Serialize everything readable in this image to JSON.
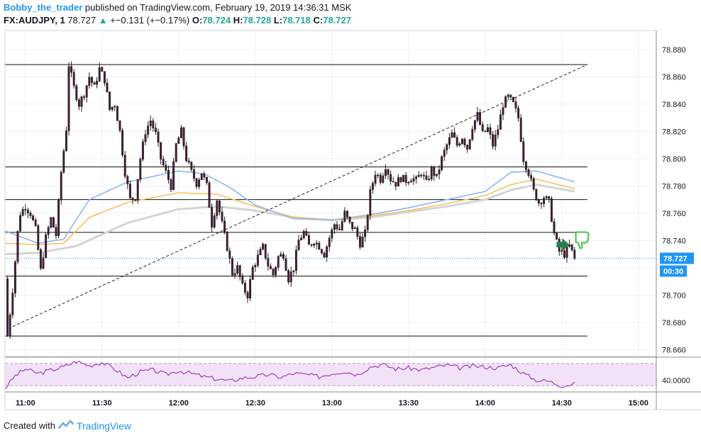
{
  "header": {
    "author": "Bobby_the_trader",
    "published_text": "published on TradingView.com, February 19, 2019 14:36:31 MSK",
    "symbol": "FX:AUDJPY, 1",
    "last": "78.727",
    "change_arrow": "▲",
    "change": "+−0.131 (+−0.17%)",
    "o_label": "O:",
    "o_value": "78.724",
    "h_label": "H:",
    "h_value": "78.728",
    "l_label": "L:",
    "l_value": "78.718",
    "c_label": "C:",
    "c_value": "78.727"
  },
  "footer": {
    "created_with": "Created with",
    "brand": "TradingView",
    "brand_icon": "tradingview-logo-icon"
  },
  "colors": {
    "grid": "#eef1f5",
    "border": "#8c8c8c",
    "candle_body": "#4a1d3a",
    "candle_wick": "#222222",
    "ma_fast": "#8fb7ea",
    "ma_mid": "#f3c55b",
    "ma_slow": "#d4d4d4",
    "rsi_line": "#8e24aa",
    "rsi_band": "#f1e2f8",
    "price_label_bg": "#2196f3",
    "arrow_green": "#2e7d4f",
    "thumb_green": "#3ec63e"
  },
  "chart_data": {
    "type": "candlestick",
    "symbol": "FX:AUDJPY",
    "interval_minutes": 1,
    "price_axis_labels": [
      "78.880",
      "78.860",
      "78.840",
      "78.820",
      "78.800",
      "78.780",
      "78.760",
      "78.740",
      "78.720",
      "78.700",
      "78.680",
      "78.660"
    ],
    "price_axis_range": [
      78.655,
      78.894
    ],
    "time_axis_labels": [
      "11:00",
      "11:30",
      "12:00",
      "12:30",
      "13:00",
      "13:30",
      "14:00",
      "14:30",
      "15:00"
    ],
    "time_range": [
      "10:52",
      "15:07"
    ],
    "current_price_label": "78.727",
    "countdown_label": "00:30",
    "horizontal_levels": [
      78.869,
      78.794,
      78.77,
      78.746,
      78.714,
      78.67
    ],
    "trendline": {
      "from": [
        "10:55",
        78.677
      ],
      "to": [
        "14:40",
        78.869
      ],
      "style": "dashed"
    },
    "moving_averages": [
      {
        "color": "blue",
        "points": [
          [
            "10:52",
            78.747
          ],
          [
            "11:05",
            78.738
          ],
          [
            "11:15",
            78.741
          ],
          [
            "11:25",
            78.77
          ],
          [
            "11:40",
            78.783
          ],
          [
            "12:00",
            78.791
          ],
          [
            "12:10",
            78.789
          ],
          [
            "12:20",
            78.779
          ],
          [
            "12:30",
            78.766
          ],
          [
            "12:45",
            78.756
          ],
          [
            "13:00",
            78.755
          ],
          [
            "13:15",
            78.759
          ],
          [
            "13:30",
            78.764
          ],
          [
            "13:45",
            78.77
          ],
          [
            "14:00",
            78.776
          ],
          [
            "14:10",
            78.79
          ],
          [
            "14:20",
            78.791
          ],
          [
            "14:35",
            78.783
          ]
        ]
      },
      {
        "color": "orange",
        "points": [
          [
            "10:52",
            78.738
          ],
          [
            "11:05",
            78.737
          ],
          [
            "11:15",
            78.738
          ],
          [
            "11:25",
            78.757
          ],
          [
            "11:40",
            78.768
          ],
          [
            "12:00",
            78.775
          ],
          [
            "12:15",
            78.774
          ],
          [
            "12:30",
            78.765
          ],
          [
            "12:45",
            78.757
          ],
          [
            "13:00",
            78.755
          ],
          [
            "13:15",
            78.758
          ],
          [
            "13:30",
            78.762
          ],
          [
            "13:45",
            78.767
          ],
          [
            "14:00",
            78.773
          ],
          [
            "14:10",
            78.781
          ],
          [
            "14:20",
            78.785
          ],
          [
            "14:35",
            78.778
          ]
        ]
      },
      {
        "color": "grey",
        "points": [
          [
            "10:52",
            78.73
          ],
          [
            "11:05",
            78.731
          ],
          [
            "11:20",
            78.736
          ],
          [
            "11:40",
            78.753
          ],
          [
            "12:00",
            78.763
          ],
          [
            "12:15",
            78.765
          ],
          [
            "12:30",
            78.762
          ],
          [
            "12:45",
            78.757
          ],
          [
            "13:00",
            78.755
          ],
          [
            "13:15",
            78.757
          ],
          [
            "13:30",
            78.761
          ],
          [
            "13:45",
            78.765
          ],
          [
            "14:00",
            78.77
          ],
          [
            "14:10",
            78.777
          ],
          [
            "14:20",
            78.781
          ],
          [
            "14:35",
            78.776
          ]
        ]
      }
    ],
    "price_path": [
      [
        "10:52",
        78.712
      ],
      [
        "10:53",
        78.67
      ],
      [
        "10:55",
        78.704
      ],
      [
        "10:57",
        78.746
      ],
      [
        "10:58",
        78.76
      ],
      [
        "11:00",
        78.765
      ],
      [
        "11:02",
        78.76
      ],
      [
        "11:04",
        78.748
      ],
      [
        "11:06",
        78.718
      ],
      [
        "11:08",
        78.742
      ],
      [
        "11:10",
        78.756
      ],
      [
        "11:12",
        78.744
      ],
      [
        "11:14",
        78.79
      ],
      [
        "11:16",
        78.822
      ],
      [
        "11:17",
        78.869
      ],
      [
        "11:19",
        78.852
      ],
      [
        "11:21",
        78.84
      ],
      [
        "11:23",
        78.848
      ],
      [
        "11:25",
        78.86
      ],
      [
        "11:27",
        78.852
      ],
      [
        "11:29",
        78.866
      ],
      [
        "11:31",
        78.858
      ],
      [
        "11:33",
        78.836
      ],
      [
        "11:35",
        78.84
      ],
      [
        "11:37",
        78.82
      ],
      [
        "11:39",
        78.79
      ],
      [
        "11:41",
        78.77
      ],
      [
        "11:43",
        78.772
      ],
      [
        "11:45",
        78.8
      ],
      [
        "11:47",
        78.82
      ],
      [
        "11:49",
        78.828
      ],
      [
        "11:51",
        78.818
      ],
      [
        "11:53",
        78.8
      ],
      [
        "11:55",
        78.79
      ],
      [
        "11:57",
        78.78
      ],
      [
        "11:59",
        78.81
      ],
      [
        "12:01",
        78.82
      ],
      [
        "12:03",
        78.8
      ],
      [
        "12:05",
        78.79
      ],
      [
        "12:07",
        78.782
      ],
      [
        "12:09",
        78.79
      ],
      [
        "12:11",
        78.78
      ],
      [
        "12:13",
        78.752
      ],
      [
        "12:15",
        78.77
      ],
      [
        "12:17",
        78.752
      ],
      [
        "12:19",
        78.735
      ],
      [
        "12:21",
        78.716
      ],
      [
        "12:23",
        78.72
      ],
      [
        "12:25",
        78.706
      ],
      [
        "12:27",
        78.7
      ],
      [
        "12:29",
        78.72
      ],
      [
        "12:31",
        78.728
      ],
      [
        "12:33",
        78.735
      ],
      [
        "12:35",
        78.722
      ],
      [
        "12:37",
        78.715
      ],
      [
        "12:39",
        78.728
      ],
      [
        "12:41",
        78.73
      ],
      [
        "12:43",
        78.712
      ],
      [
        "12:45",
        78.72
      ],
      [
        "12:47",
        78.74
      ],
      [
        "12:49",
        78.746
      ],
      [
        "12:51",
        78.736
      ],
      [
        "12:53",
        78.74
      ],
      [
        "12:55",
        78.736
      ],
      [
        "12:57",
        78.73
      ],
      [
        "12:59",
        78.742
      ],
      [
        "13:01",
        78.752
      ],
      [
        "13:03",
        78.748
      ],
      [
        "13:05",
        78.76
      ],
      [
        "13:07",
        78.752
      ],
      [
        "13:09",
        78.748
      ],
      [
        "13:11",
        78.738
      ],
      [
        "13:13",
        78.745
      ],
      [
        "13:15",
        78.775
      ],
      [
        "13:17",
        78.79
      ],
      [
        "13:19",
        78.785
      ],
      [
        "13:21",
        78.795
      ],
      [
        "13:23",
        78.785
      ],
      [
        "13:25",
        78.782
      ],
      [
        "13:27",
        78.786
      ],
      [
        "13:29",
        78.784
      ],
      [
        "13:31",
        78.786
      ],
      [
        "13:33",
        78.784
      ],
      [
        "13:35",
        78.79
      ],
      [
        "13:37",
        78.782
      ],
      [
        "13:39",
        78.792
      ],
      [
        "13:41",
        78.786
      ],
      [
        "13:43",
        78.8
      ],
      [
        "13:45",
        78.81
      ],
      [
        "13:47",
        78.818
      ],
      [
        "13:49",
        78.81
      ],
      [
        "13:51",
        78.816
      ],
      [
        "13:53",
        78.808
      ],
      [
        "13:55",
        78.824
      ],
      [
        "13:57",
        78.832
      ],
      [
        "13:59",
        78.818
      ],
      [
        "14:01",
        78.822
      ],
      [
        "14:03",
        78.81
      ],
      [
        "14:05",
        78.822
      ],
      [
        "14:07",
        78.84
      ],
      [
        "14:09",
        78.845
      ],
      [
        "14:11",
        78.84
      ],
      [
        "14:13",
        78.83
      ],
      [
        "14:15",
        78.8
      ],
      [
        "14:17",
        78.79
      ],
      [
        "14:19",
        78.776
      ],
      [
        "14:21",
        78.768
      ],
      [
        "14:23",
        78.772
      ],
      [
        "14:25",
        78.768
      ],
      [
        "14:27",
        78.745
      ],
      [
        "14:29",
        78.732
      ],
      [
        "14:31",
        78.73
      ],
      [
        "14:33",
        78.736
      ],
      [
        "14:35",
        78.727
      ]
    ],
    "rsi": {
      "axis_label": "40.0000",
      "band": [
        30,
        70
      ],
      "points": [
        [
          "10:52",
          25
        ],
        [
          "10:56",
          48
        ],
        [
          "11:00",
          60
        ],
        [
          "11:05",
          52
        ],
        [
          "11:10",
          58
        ],
        [
          "11:15",
          64
        ],
        [
          "11:20",
          74
        ],
        [
          "11:25",
          66
        ],
        [
          "11:30",
          72
        ],
        [
          "11:35",
          60
        ],
        [
          "11:40",
          44
        ],
        [
          "11:45",
          55
        ],
        [
          "11:50",
          58
        ],
        [
          "11:55",
          50
        ],
        [
          "12:00",
          57
        ],
        [
          "12:05",
          52
        ],
        [
          "12:10",
          46
        ],
        [
          "12:15",
          42
        ],
        [
          "12:20",
          38
        ],
        [
          "12:25",
          44
        ],
        [
          "12:30",
          46
        ],
        [
          "12:35",
          50
        ],
        [
          "12:40",
          45
        ],
        [
          "12:45",
          52
        ],
        [
          "12:50",
          50
        ],
        [
          "12:55",
          46
        ],
        [
          "13:00",
          52
        ],
        [
          "13:05",
          56
        ],
        [
          "13:10",
          50
        ],
        [
          "13:15",
          64
        ],
        [
          "13:20",
          68
        ],
        [
          "13:25",
          60
        ],
        [
          "13:30",
          62
        ],
        [
          "13:35",
          58
        ],
        [
          "13:40",
          63
        ],
        [
          "13:45",
          67
        ],
        [
          "13:50",
          62
        ],
        [
          "13:55",
          65
        ],
        [
          "14:00",
          64
        ],
        [
          "14:05",
          62
        ],
        [
          "14:10",
          68
        ],
        [
          "14:15",
          52
        ],
        [
          "14:20",
          40
        ],
        [
          "14:25",
          38
        ],
        [
          "14:30",
          30
        ],
        [
          "14:35",
          33
        ]
      ]
    },
    "annotations": [
      {
        "type": "arrow-right",
        "icon": "green-arrow-right-icon",
        "time": "14:31",
        "price": 78.737
      },
      {
        "type": "thumbs-down",
        "icon": "thumbs-down-icon",
        "time": "14:38",
        "price": 78.741
      }
    ]
  }
}
